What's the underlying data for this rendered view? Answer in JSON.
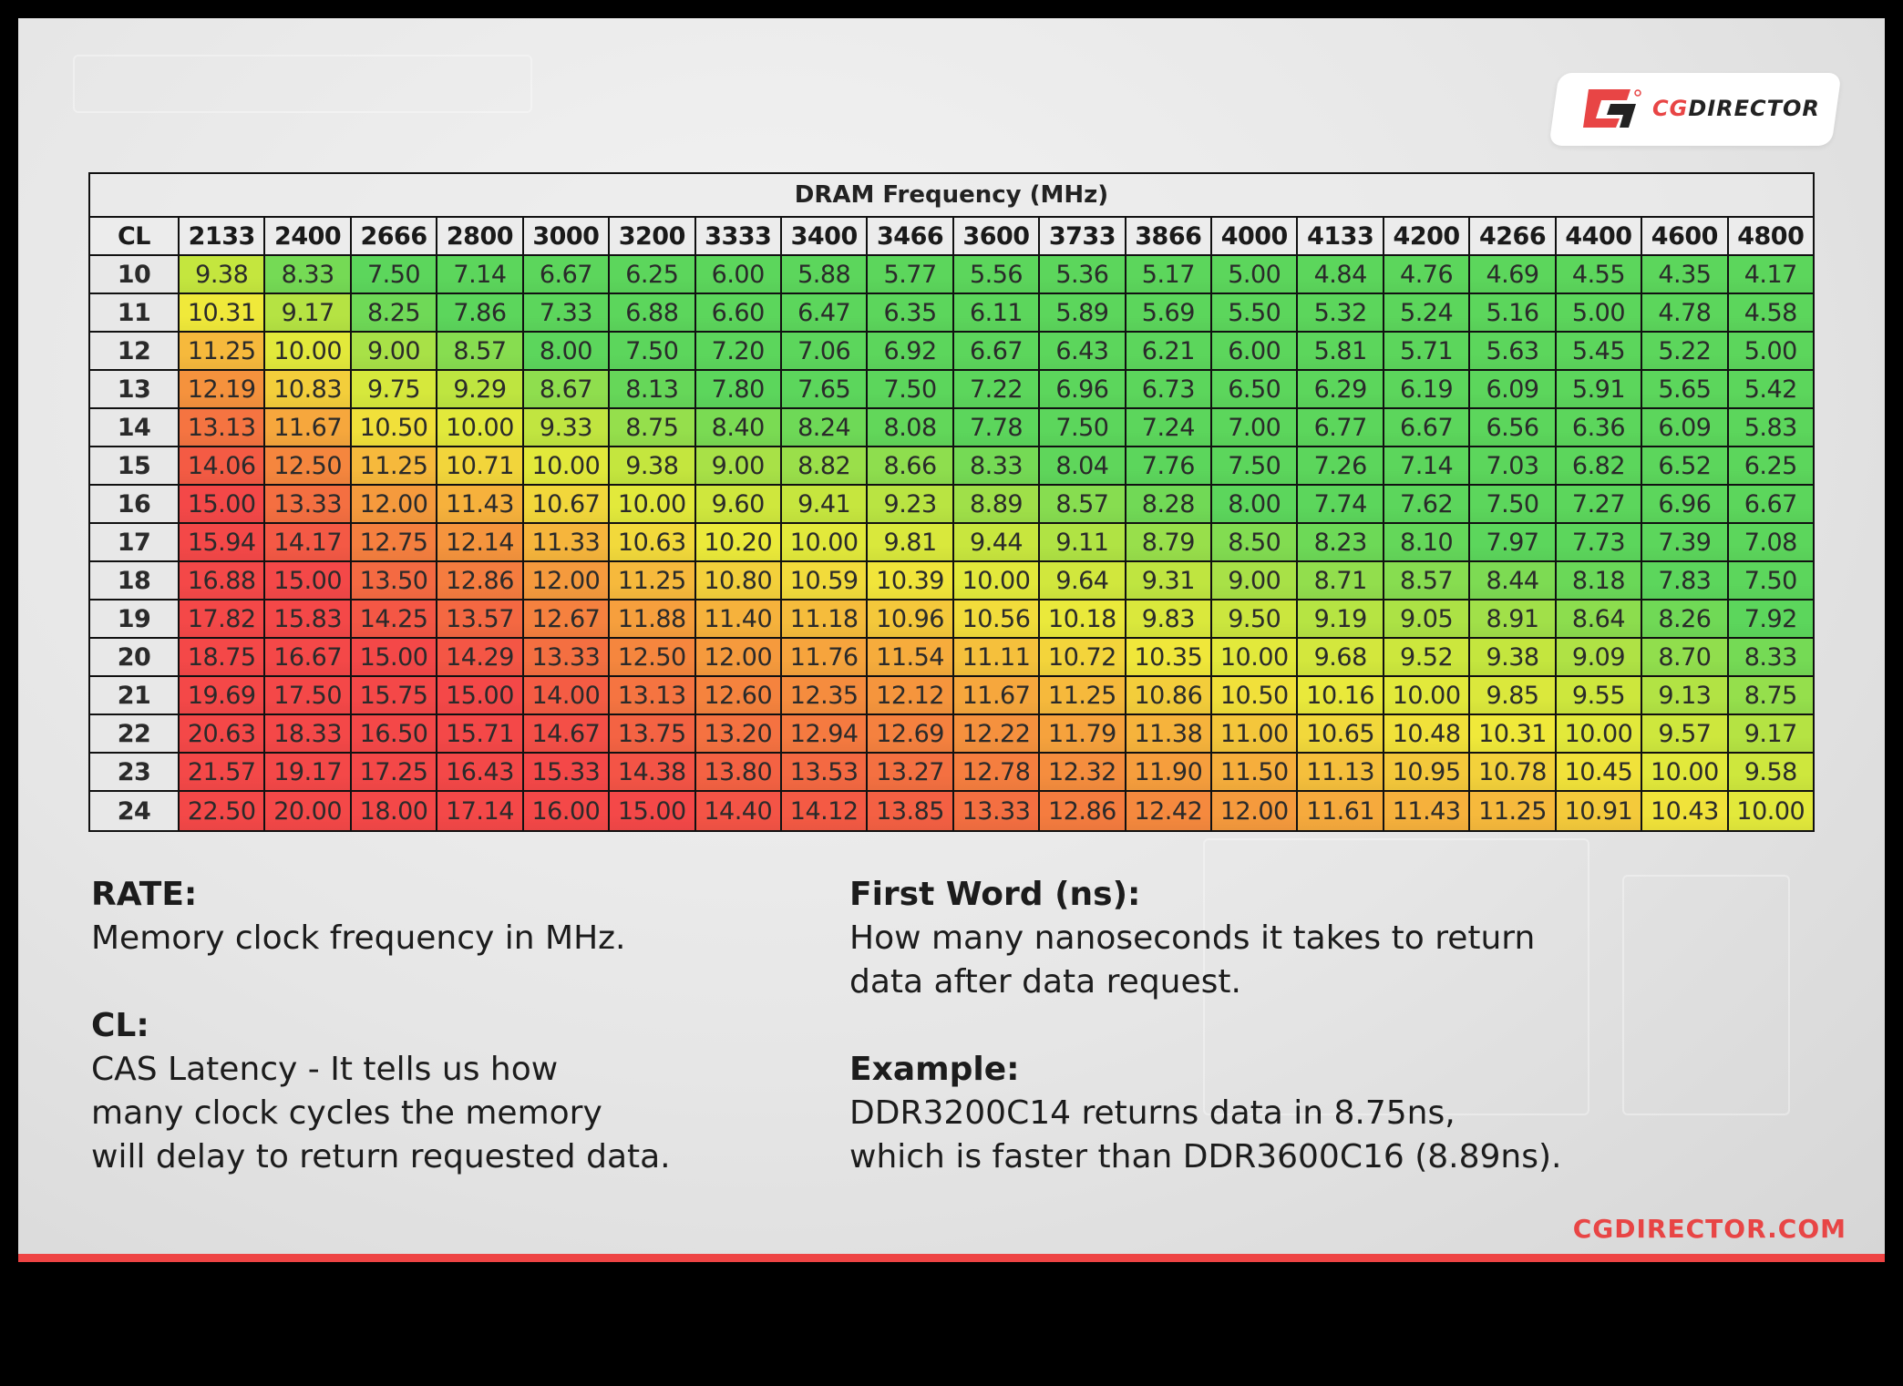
{
  "logo": {
    "cg": "CG",
    "rest": "DIRECTOR"
  },
  "chart_data": {
    "type": "heatmap",
    "title": "DRAM Frequency (MHz)",
    "row_header": "CL",
    "columns": [
      "2133",
      "2400",
      "2666",
      "2800",
      "3000",
      "3200",
      "3333",
      "3400",
      "3466",
      "3600",
      "3733",
      "3866",
      "4000",
      "4133",
      "4200",
      "4266",
      "4400",
      "4600",
      "4800"
    ],
    "rows": [
      {
        "cl": "10",
        "values": [
          "9.38",
          "8.33",
          "7.50",
          "7.14",
          "6.67",
          "6.25",
          "6.00",
          "5.88",
          "5.77",
          "5.56",
          "5.36",
          "5.17",
          "5.00",
          "4.84",
          "4.76",
          "4.69",
          "4.55",
          "4.35",
          "4.17"
        ]
      },
      {
        "cl": "11",
        "values": [
          "10.31",
          "9.17",
          "8.25",
          "7.86",
          "7.33",
          "6.88",
          "6.60",
          "6.47",
          "6.35",
          "6.11",
          "5.89",
          "5.69",
          "5.50",
          "5.32",
          "5.24",
          "5.16",
          "5.00",
          "4.78",
          "4.58"
        ]
      },
      {
        "cl": "12",
        "values": [
          "11.25",
          "10.00",
          "9.00",
          "8.57",
          "8.00",
          "7.50",
          "7.20",
          "7.06",
          "6.92",
          "6.67",
          "6.43",
          "6.21",
          "6.00",
          "5.81",
          "5.71",
          "5.63",
          "5.45",
          "5.22",
          "5.00"
        ]
      },
      {
        "cl": "13",
        "values": [
          "12.19",
          "10.83",
          "9.75",
          "9.29",
          "8.67",
          "8.13",
          "7.80",
          "7.65",
          "7.50",
          "7.22",
          "6.96",
          "6.73",
          "6.50",
          "6.29",
          "6.19",
          "6.09",
          "5.91",
          "5.65",
          "5.42"
        ]
      },
      {
        "cl": "14",
        "values": [
          "13.13",
          "11.67",
          "10.50",
          "10.00",
          "9.33",
          "8.75",
          "8.40",
          "8.24",
          "8.08",
          "7.78",
          "7.50",
          "7.24",
          "7.00",
          "6.77",
          "6.67",
          "6.56",
          "6.36",
          "6.09",
          "5.83"
        ]
      },
      {
        "cl": "15",
        "values": [
          "14.06",
          "12.50",
          "11.25",
          "10.71",
          "10.00",
          "9.38",
          "9.00",
          "8.82",
          "8.66",
          "8.33",
          "8.04",
          "7.76",
          "7.50",
          "7.26",
          "7.14",
          "7.03",
          "6.82",
          "6.52",
          "6.25"
        ]
      },
      {
        "cl": "16",
        "values": [
          "15.00",
          "13.33",
          "12.00",
          "11.43",
          "10.67",
          "10.00",
          "9.60",
          "9.41",
          "9.23",
          "8.89",
          "8.57",
          "8.28",
          "8.00",
          "7.74",
          "7.62",
          "7.50",
          "7.27",
          "6.96",
          "6.67"
        ]
      },
      {
        "cl": "17",
        "values": [
          "15.94",
          "14.17",
          "12.75",
          "12.14",
          "11.33",
          "10.63",
          "10.20",
          "10.00",
          "9.81",
          "9.44",
          "9.11",
          "8.79",
          "8.50",
          "8.23",
          "8.10",
          "7.97",
          "7.73",
          "7.39",
          "7.08"
        ]
      },
      {
        "cl": "18",
        "values": [
          "16.88",
          "15.00",
          "13.50",
          "12.86",
          "12.00",
          "11.25",
          "10.80",
          "10.59",
          "10.39",
          "10.00",
          "9.64",
          "9.31",
          "9.00",
          "8.71",
          "8.57",
          "8.44",
          "8.18",
          "7.83",
          "7.50"
        ]
      },
      {
        "cl": "19",
        "values": [
          "17.82",
          "15.83",
          "14.25",
          "13.57",
          "12.67",
          "11.88",
          "11.40",
          "11.18",
          "10.96",
          "10.56",
          "10.18",
          "9.83",
          "9.50",
          "9.19",
          "9.05",
          "8.91",
          "8.64",
          "8.26",
          "7.92"
        ]
      },
      {
        "cl": "20",
        "values": [
          "18.75",
          "16.67",
          "15.00",
          "14.29",
          "13.33",
          "12.50",
          "12.00",
          "11.76",
          "11.54",
          "11.11",
          "10.72",
          "10.35",
          "10.00",
          "9.68",
          "9.52",
          "9.38",
          "9.09",
          "8.70",
          "8.33"
        ]
      },
      {
        "cl": "21",
        "values": [
          "19.69",
          "17.50",
          "15.75",
          "15.00",
          "14.00",
          "13.13",
          "12.60",
          "12.35",
          "12.12",
          "11.67",
          "11.25",
          "10.86",
          "10.50",
          "10.16",
          "10.00",
          "9.85",
          "9.55",
          "9.13",
          "8.75"
        ]
      },
      {
        "cl": "22",
        "values": [
          "20.63",
          "18.33",
          "16.50",
          "15.71",
          "14.67",
          "13.75",
          "13.20",
          "12.94",
          "12.69",
          "12.22",
          "11.79",
          "11.38",
          "11.00",
          "10.65",
          "10.48",
          "10.31",
          "10.00",
          "9.57",
          "9.17"
        ]
      },
      {
        "cl": "23",
        "values": [
          "21.57",
          "19.17",
          "17.25",
          "16.43",
          "15.33",
          "14.38",
          "13.80",
          "13.53",
          "13.27",
          "12.78",
          "12.32",
          "11.90",
          "11.50",
          "11.13",
          "10.95",
          "10.78",
          "10.45",
          "10.00",
          "9.58"
        ]
      },
      {
        "cl": "24",
        "values": [
          "22.50",
          "20.00",
          "18.00",
          "17.14",
          "16.00",
          "15.00",
          "14.40",
          "14.12",
          "13.85",
          "13.33",
          "12.86",
          "12.42",
          "12.00",
          "11.61",
          "11.43",
          "11.25",
          "10.91",
          "10.43",
          "10.00"
        ]
      }
    ],
    "color_scale": [
      {
        "value": 8.0,
        "color": "#5cd65c"
      },
      {
        "value": 9.4,
        "color": "#c6e63e"
      },
      {
        "value": 10.3,
        "color": "#f0ea3a"
      },
      {
        "value": 11.3,
        "color": "#f6b63c"
      },
      {
        "value": 12.5,
        "color": "#f5863e"
      },
      {
        "value": 14.0,
        "color": "#f45c44"
      },
      {
        "value": 15.0,
        "color": "#f44848"
      }
    ]
  },
  "legend": {
    "rate_heading": "RATE:",
    "rate_text": "Memory clock frequency in MHz.",
    "cl_heading": "CL:",
    "cl_lines": [
      "CAS Latency - It tells us how",
      "many clock cycles the memory",
      "will delay to return requested data."
    ],
    "fw_heading": "First Word (ns):",
    "fw_lines": [
      "How many nanoseconds it takes to return",
      "data after data request."
    ],
    "ex_heading": "Example:",
    "ex_lines": [
      "DDR3200C14 returns data in 8.75ns,",
      "which is faster than DDR3600C16 (8.89ns)."
    ]
  },
  "footer": "CGDIRECTOR.COM",
  "colors": {
    "brand_red": "#e84545"
  }
}
